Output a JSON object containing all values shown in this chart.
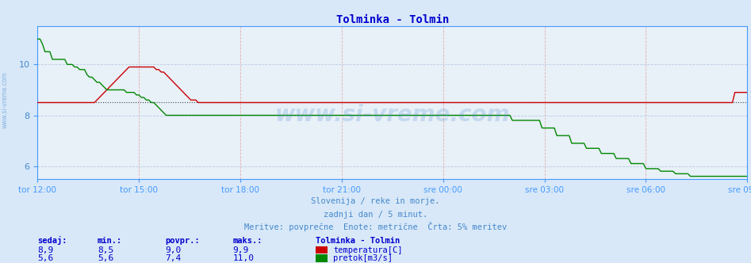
{
  "title": "Tolminka - Tolmin",
  "title_color": "#0000cc",
  "bg_color": "#d8e8f8",
  "plot_bg_color": "#e8f0f8",
  "temp_color": "#cc0000",
  "flow_color": "#008800",
  "avg_line_color": "#800000",
  "xaxis_color": "#4499ff",
  "yaxis_color": "#4499ff",
  "xlabel_color": "#4488cc",
  "ylabel_color": "#4488cc",
  "ylim": [
    5.5,
    11.5
  ],
  "yticks": [
    6,
    8,
    10
  ],
  "x_labels": [
    "tor 12:00",
    "tor 15:00",
    "tor 18:00",
    "tor 21:00",
    "sre 00:00",
    "sre 03:00",
    "sre 06:00",
    "sre 09:00"
  ],
  "footer_color": "#4488cc",
  "footer_line1": "Slovenija / reke in morje.",
  "footer_line2": "zadnji dan / 5 minut.",
  "footer_line3": "Meritve: povprečne  Enote: metrične  Črta: 5% meritev",
  "watermark": "www.si-vreme.com",
  "watermark_color": "#4488cc",
  "sidebar_text": "www.si-vreme.com",
  "table_headers": [
    "sedaj:",
    "min.:",
    "povpr.:",
    "maks.:"
  ],
  "table_header_color": "#0000cc",
  "station_name": "Tolminka - Tolmin",
  "row1_values": [
    "8,9",
    "8,5",
    "9,0",
    "9,9"
  ],
  "row2_values": [
    "5,6",
    "5,6",
    "7,4",
    "11,0"
  ],
  "legend_temp": "temperatura[C]",
  "legend_flow": "pretok[m3/s]",
  "avg_temp": 8.5,
  "n_points": 288,
  "temp_data": [
    8.5,
    8.5,
    8.5,
    8.5,
    8.5,
    8.5,
    8.5,
    8.5,
    8.5,
    8.5,
    8.5,
    8.5,
    8.5,
    8.5,
    8.5,
    8.5,
    8.5,
    8.5,
    8.5,
    8.5,
    8.5,
    8.5,
    8.5,
    8.5,
    8.6,
    8.7,
    8.8,
    8.9,
    9.0,
    9.1,
    9.2,
    9.3,
    9.4,
    9.5,
    9.6,
    9.7,
    9.8,
    9.9,
    9.9,
    9.9,
    9.9,
    9.9,
    9.9,
    9.9,
    9.9,
    9.9,
    9.9,
    9.9,
    9.8,
    9.8,
    9.7,
    9.7,
    9.6,
    9.5,
    9.4,
    9.3,
    9.2,
    9.1,
    9.0,
    8.9,
    8.8,
    8.7,
    8.6,
    8.6,
    8.6,
    8.5,
    8.5,
    8.5,
    8.5,
    8.5,
    8.5,
    8.5,
    8.5,
    8.5,
    8.5,
    8.5,
    8.5,
    8.5,
    8.5,
    8.5,
    8.5,
    8.5,
    8.5,
    8.5,
    8.5,
    8.5,
    8.5,
    8.5,
    8.5,
    8.5,
    8.5,
    8.5,
    8.5,
    8.5,
    8.5,
    8.5,
    8.5,
    8.5,
    8.5,
    8.5,
    8.5,
    8.5,
    8.5,
    8.5,
    8.5,
    8.5,
    8.5,
    8.5,
    8.5,
    8.5,
    8.5,
    8.5,
    8.5,
    8.5,
    8.5,
    8.5,
    8.5,
    8.5,
    8.5,
    8.5,
    8.5,
    8.5,
    8.5,
    8.5,
    8.5,
    8.5,
    8.5,
    8.5,
    8.5,
    8.5,
    8.5,
    8.5,
    8.5,
    8.5,
    8.5,
    8.5,
    8.5,
    8.5,
    8.5,
    8.5,
    8.5,
    8.5,
    8.5,
    8.5,
    8.5,
    8.5,
    8.5,
    8.5,
    8.5,
    8.5,
    8.5,
    8.5,
    8.5,
    8.5,
    8.5,
    8.5,
    8.5,
    8.5,
    8.5,
    8.5,
    8.5,
    8.5,
    8.5,
    8.5,
    8.5,
    8.5,
    8.5,
    8.5,
    8.5,
    8.5,
    8.5,
    8.5,
    8.5,
    8.5,
    8.5,
    8.5,
    8.5,
    8.5,
    8.5,
    8.5,
    8.5,
    8.5,
    8.5,
    8.5,
    8.5,
    8.5,
    8.5,
    8.5,
    8.5,
    8.5,
    8.5,
    8.5,
    8.5,
    8.5,
    8.5,
    8.5,
    8.5,
    8.5,
    8.5,
    8.5,
    8.5,
    8.5,
    8.5,
    8.5,
    8.5,
    8.5,
    8.5,
    8.5,
    8.5,
    8.5,
    8.5,
    8.5,
    8.5,
    8.5,
    8.5,
    8.5,
    8.5,
    8.5,
    8.5,
    8.5,
    8.5,
    8.5,
    8.5,
    8.5,
    8.5,
    8.5,
    8.5,
    8.5,
    8.5,
    8.5,
    8.5,
    8.5,
    8.5,
    8.5,
    8.5,
    8.5,
    8.5,
    8.5,
    8.5,
    8.5,
    8.5,
    8.5,
    8.5,
    8.5,
    8.5,
    8.5,
    8.5,
    8.5,
    8.5,
    8.5,
    8.5,
    8.5,
    8.5,
    8.5,
    8.5,
    8.5,
    8.5,
    8.5,
    8.5,
    8.5,
    8.5,
    8.5,
    8.5,
    8.5,
    8.5,
    8.5,
    8.5,
    8.5,
    8.5,
    8.5,
    8.5,
    8.5,
    8.5,
    8.5,
    8.5,
    8.5,
    8.5,
    8.5,
    8.5,
    8.5,
    8.5,
    8.5,
    8.9,
    8.9,
    8.9,
    8.9,
    8.9,
    8.9
  ],
  "flow_data": [
    11.0,
    11.0,
    10.8,
    10.5,
    10.5,
    10.5,
    10.2,
    10.2,
    10.2,
    10.2,
    10.2,
    10.2,
    10.0,
    10.0,
    10.0,
    9.9,
    9.9,
    9.8,
    9.8,
    9.8,
    9.6,
    9.5,
    9.5,
    9.4,
    9.3,
    9.3,
    9.2,
    9.1,
    9.0,
    9.0,
    9.0,
    9.0,
    9.0,
    9.0,
    9.0,
    9.0,
    8.9,
    8.9,
    8.9,
    8.9,
    8.8,
    8.8,
    8.7,
    8.7,
    8.6,
    8.6,
    8.5,
    8.5,
    8.4,
    8.3,
    8.2,
    8.1,
    8.0,
    8.0,
    8.0,
    8.0,
    8.0,
    8.0,
    8.0,
    8.0,
    8.0,
    8.0,
    8.0,
    8.0,
    8.0,
    8.0,
    8.0,
    8.0,
    8.0,
    8.0,
    8.0,
    8.0,
    8.0,
    8.0,
    8.0,
    8.0,
    8.0,
    8.0,
    8.0,
    8.0,
    8.0,
    8.0,
    8.0,
    8.0,
    8.0,
    8.0,
    8.0,
    8.0,
    8.0,
    8.0,
    8.0,
    8.0,
    8.0,
    8.0,
    8.0,
    8.0,
    8.0,
    8.0,
    8.0,
    8.0,
    8.0,
    8.0,
    8.0,
    8.0,
    8.0,
    8.0,
    8.0,
    8.0,
    8.0,
    8.0,
    8.0,
    8.0,
    8.0,
    8.0,
    8.0,
    8.0,
    8.0,
    8.0,
    8.0,
    8.0,
    8.0,
    8.0,
    8.0,
    8.0,
    8.0,
    8.0,
    8.0,
    8.0,
    8.0,
    8.0,
    8.0,
    8.0,
    8.0,
    8.0,
    8.0,
    8.0,
    8.0,
    8.0,
    8.0,
    8.0,
    8.0,
    8.0,
    8.0,
    8.0,
    8.0,
    8.0,
    8.0,
    8.0,
    8.0,
    8.0,
    8.0,
    8.0,
    8.0,
    8.0,
    8.0,
    8.0,
    8.0,
    8.0,
    8.0,
    8.0,
    8.0,
    8.0,
    8.0,
    8.0,
    8.0,
    8.0,
    8.0,
    8.0,
    8.0,
    8.0,
    8.0,
    8.0,
    8.0,
    8.0,
    8.0,
    8.0,
    8.0,
    8.0,
    8.0,
    8.0,
    8.0,
    8.0,
    8.0,
    8.0,
    8.0,
    8.0,
    8.0,
    8.0,
    8.0,
    8.0,
    8.0,
    8.0,
    7.8,
    7.8,
    7.8,
    7.8,
    7.8,
    7.8,
    7.8,
    7.8,
    7.8,
    7.8,
    7.8,
    7.8,
    7.5,
    7.5,
    7.5,
    7.5,
    7.5,
    7.5,
    7.2,
    7.2,
    7.2,
    7.2,
    7.2,
    7.2,
    6.9,
    6.9,
    6.9,
    6.9,
    6.9,
    6.9,
    6.7,
    6.7,
    6.7,
    6.7,
    6.7,
    6.7,
    6.5,
    6.5,
    6.5,
    6.5,
    6.5,
    6.5,
    6.3,
    6.3,
    6.3,
    6.3,
    6.3,
    6.3,
    6.1,
    6.1,
    6.1,
    6.1,
    6.1,
    6.1,
    5.9,
    5.9,
    5.9,
    5.9,
    5.9,
    5.9,
    5.8,
    5.8,
    5.8,
    5.8,
    5.8,
    5.8,
    5.7,
    5.7,
    5.7,
    5.7,
    5.7,
    5.7,
    5.6,
    5.6,
    5.6,
    5.6,
    5.6,
    5.6,
    5.6,
    5.6,
    5.6,
    5.6,
    5.6,
    5.6,
    5.6,
    5.6,
    5.6,
    5.6,
    5.6,
    5.6,
    5.6,
    5.6,
    5.6,
    5.6,
    5.6,
    5.6
  ]
}
